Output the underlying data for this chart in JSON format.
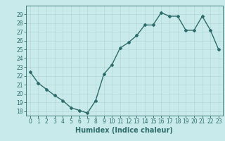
{
  "x": [
    0,
    1,
    2,
    3,
    4,
    5,
    6,
    7,
    8,
    9,
    10,
    11,
    12,
    13,
    14,
    15,
    16,
    17,
    18,
    19,
    20,
    21,
    22,
    23
  ],
  "y": [
    22.5,
    21.2,
    20.5,
    19.8,
    19.2,
    18.4,
    18.1,
    17.8,
    19.2,
    22.2,
    23.3,
    25.2,
    25.8,
    26.6,
    27.8,
    27.8,
    29.2,
    28.8,
    28.8,
    27.2,
    27.2,
    28.8,
    27.2,
    25.0
  ],
  "line_color": "#2e6b6b",
  "marker": "D",
  "marker_size": 2.0,
  "bg_color": "#c8eaea",
  "grid_color": "#b8d8d8",
  "xlabel": "Humidex (Indice chaleur)",
  "ylim": [
    17.5,
    30.0
  ],
  "xlim": [
    -0.5,
    23.5
  ],
  "yticks": [
    18,
    19,
    20,
    21,
    22,
    23,
    24,
    25,
    26,
    27,
    28,
    29
  ],
  "xticks": [
    0,
    1,
    2,
    3,
    4,
    5,
    6,
    7,
    8,
    9,
    10,
    11,
    12,
    13,
    14,
    15,
    16,
    17,
    18,
    19,
    20,
    21,
    22,
    23
  ],
  "tick_label_fontsize": 5.5,
  "xlabel_fontsize": 7.0,
  "line_width": 1.0
}
